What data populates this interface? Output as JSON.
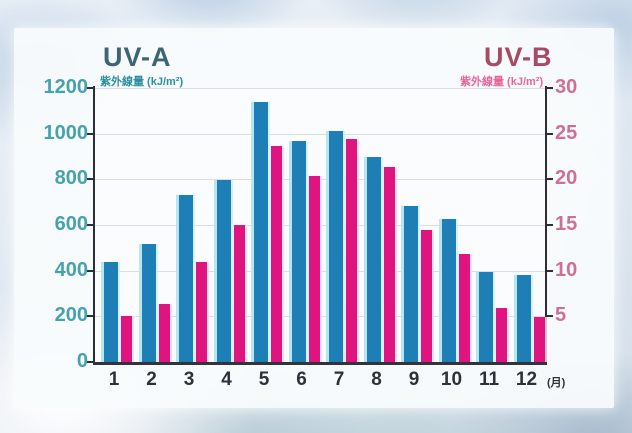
{
  "colors": {
    "uva_bar": "#1d7fb5",
    "uvb_bar": "#e0147f",
    "uva_title": "#3d6572",
    "uva_sublabel": "#2f8f9d",
    "uvb_title": "#a84a63",
    "uvb_sublabel": "#e8669c",
    "left_tick_text": "#47a2ac",
    "right_tick_text": "#cf6f98",
    "axis_line": "#2d2d38",
    "gridline": "#d9dee3",
    "bar_highlight": "#b2e5f1"
  },
  "chart_data": {
    "type": "bar",
    "title_left": "UV-A",
    "title_right": "UV-B",
    "axis_label_left": "紫外線量 (kJ/m²)",
    "axis_label_right": "紫外線量 (kJ/m²)",
    "categories": [
      "1",
      "2",
      "3",
      "4",
      "5",
      "6",
      "7",
      "8",
      "9",
      "10",
      "11",
      "12"
    ],
    "x_unit_suffix": "(月)",
    "series": [
      {
        "name": "UV-A",
        "axis": "left",
        "color": "#1d7fb5",
        "values": [
          440,
          515,
          730,
          795,
          1140,
          970,
          1010,
          900,
          685,
          625,
          395,
          380
        ]
      },
      {
        "name": "UV-B",
        "axis": "right",
        "color": "#e0147f",
        "values": [
          5.0,
          6.4,
          11.0,
          15.0,
          23.6,
          20.4,
          24.4,
          21.3,
          14.4,
          11.8,
          5.9,
          4.9
        ]
      }
    ],
    "left_axis": {
      "min": 0,
      "max": 1200,
      "tick_step": 200,
      "tick_labels": [
        "1200",
        "1000",
        "800",
        "600",
        "400",
        "200",
        "0"
      ]
    },
    "right_axis": {
      "min": 0,
      "max": 30,
      "tick_step": 5,
      "tick_labels": [
        "30",
        "25",
        "20",
        "15",
        "10",
        "5"
      ]
    },
    "grid": true,
    "legend_position": "top-corners"
  }
}
